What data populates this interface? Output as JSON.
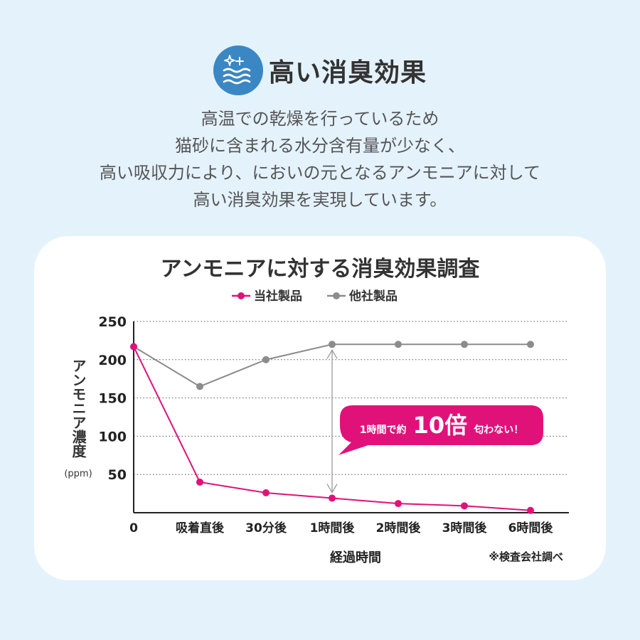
{
  "header": {
    "title": "高い消臭効果",
    "icon": "sparkle-wave-icon",
    "accent": "#3a87c4"
  },
  "description": [
    "高温での乾燥を行っているため",
    "猫砂に含まれる水分含有量が少なく、",
    "高い吸収力により、においの元となるアンモニアに対して",
    "高い消臭効果を実現しています。"
  ],
  "chart_data": {
    "type": "line",
    "title": "アンモニアに対する消臭効果調査",
    "categories": [
      "0",
      "吸着直後",
      "30分後",
      "1時間後",
      "2時間後",
      "3時間後",
      "6時間後"
    ],
    "series": [
      {
        "name": "当社製品",
        "color": "#e0127a",
        "values": [
          217,
          40,
          26,
          19,
          12,
          9,
          3
        ]
      },
      {
        "name": "他社製品",
        "color": "#8c8c8c",
        "values": [
          217,
          165,
          200,
          220,
          220,
          220,
          220
        ]
      }
    ],
    "ylim": [
      0,
      250
    ],
    "yticks": [
      "250",
      "200",
      "150",
      "100",
      "50"
    ],
    "ylabel": "アンモニア濃度",
    "yunit": "(ppm)",
    "xlabel": "経過時間",
    "grid": "dotted-horizontal",
    "legend": "top-center",
    "source": "※検査会社調べ",
    "callout": {
      "prefix": "1時間で約",
      "highlight": "10倍",
      "suffix": "匂わない！",
      "color": "#e0127a"
    }
  }
}
